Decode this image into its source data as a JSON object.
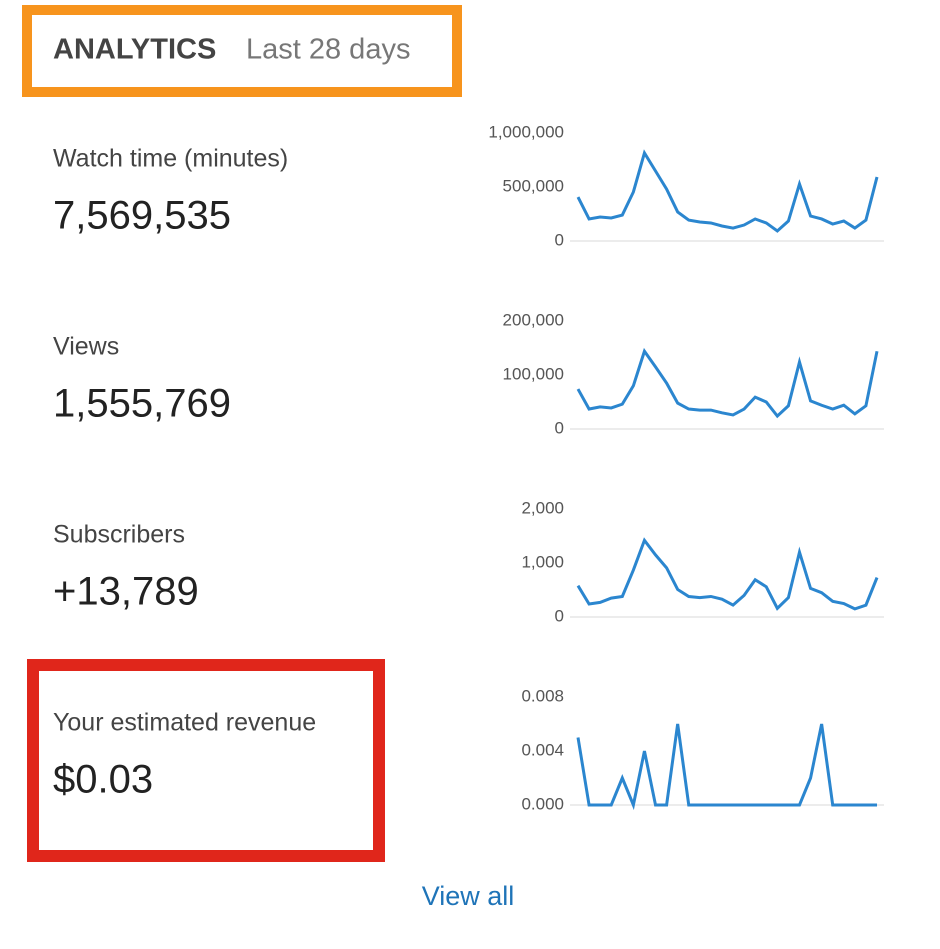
{
  "header": {
    "title": "ANALYTICS",
    "period": "Last 28 days"
  },
  "metrics": [
    {
      "label": "Watch time (minutes)",
      "value": "7,569,535",
      "chart": {
        "type": "line",
        "color": "#2b86cf",
        "ylim": [
          0,
          1000000
        ],
        "yticks": [
          0,
          {
            "value": 500000,
            "label": "500,000"
          },
          {
            "value": 1000000,
            "label": "1,000,000"
          }
        ],
        "values": [
          407000,
          204000,
          222000,
          213000,
          240000,
          454000,
          815000,
          648000,
          481000,
          269000,
          194000,
          176000,
          167000,
          139000,
          120000,
          148000,
          204000,
          167000,
          93000,
          185000,
          528000,
          231000,
          204000,
          157000,
          185000,
          120000,
          194000,
          593000
        ]
      }
    },
    {
      "label": "Views",
      "value": "1,555,769",
      "chart": {
        "type": "line",
        "color": "#2b86cf",
        "ylim": [
          0,
          200000
        ],
        "yticks": [
          0,
          {
            "value": 100000,
            "label": "100,000"
          },
          {
            "value": 200000,
            "label": "200,000"
          }
        ],
        "values": [
          74000,
          37000,
          41000,
          39000,
          46000,
          80000,
          144000,
          115000,
          85000,
          48000,
          37000,
          35000,
          35000,
          30000,
          26000,
          37000,
          59000,
          50000,
          24000,
          43000,
          124000,
          52000,
          44000,
          37000,
          44000,
          28000,
          43000,
          144000
        ]
      }
    },
    {
      "label": "Subscribers",
      "value": "+13,789",
      "chart": {
        "type": "line",
        "color": "#2b86cf",
        "ylim": [
          0,
          2000
        ],
        "yticks": [
          0,
          {
            "value": 1000,
            "label": "1,000"
          },
          {
            "value": 2000,
            "label": "2,000"
          }
        ],
        "values": [
          580,
          240,
          270,
          350,
          380,
          870,
          1420,
          1150,
          910,
          510,
          380,
          360,
          380,
          330,
          220,
          400,
          690,
          560,
          160,
          360,
          1200,
          530,
          450,
          290,
          250,
          150,
          220,
          730
        ]
      }
    },
    {
      "label": "Your estimated revenue",
      "value": "$0.03",
      "chart": {
        "type": "line",
        "color": "#2b86cf",
        "ylim": [
          0,
          0.008
        ],
        "yticks": [
          {
            "value": 0,
            "label": "0.000"
          },
          0.004,
          0.008
        ],
        "values": [
          0.005,
          0,
          0,
          0,
          0.002,
          0,
          0.004,
          0,
          0,
          0.006,
          0,
          0,
          0,
          0,
          0,
          0,
          0,
          0,
          0,
          0,
          0,
          0.002,
          0.006,
          0,
          0,
          0,
          0,
          0
        ]
      }
    }
  ],
  "footer": {
    "link": "View all"
  }
}
